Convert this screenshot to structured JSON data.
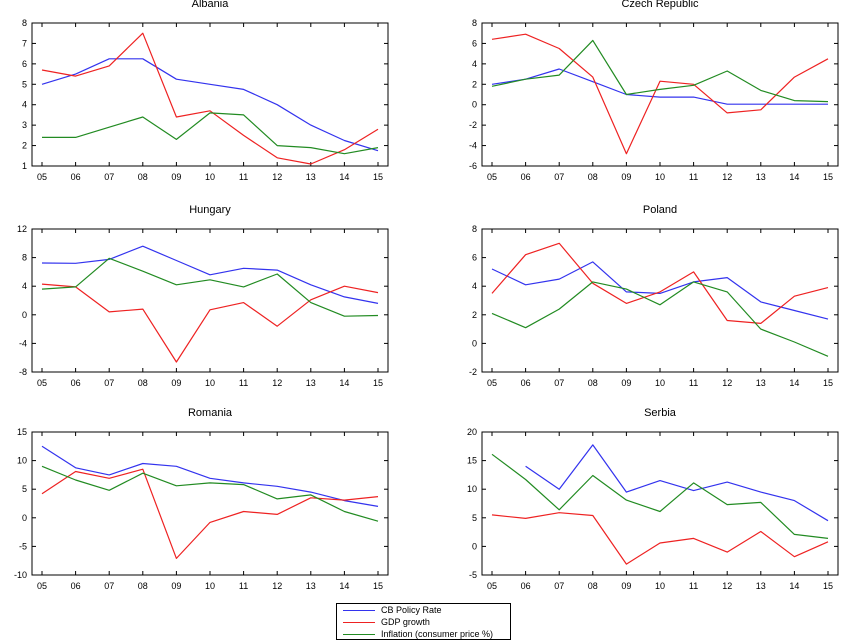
{
  "colors": {
    "cb_policy_rate": "#3333ee",
    "gdp_growth": "#ee2222",
    "inflation": "#228b22"
  },
  "legend": {
    "items": [
      {
        "label": "CB Policy Rate",
        "color": "#3333ee"
      },
      {
        "label": "GDP growth",
        "color": "#ee2222"
      },
      {
        "label": "Inflation (consumer price %)",
        "color": "#228b22"
      }
    ]
  },
  "chart_data": [
    {
      "type": "line",
      "title": "Albania",
      "categories": [
        "05",
        "06",
        "07",
        "08",
        "09",
        "10",
        "11",
        "12",
        "13",
        "14",
        "15"
      ],
      "ylim": [
        1,
        8
      ],
      "yticks": [
        1,
        2,
        3,
        4,
        5,
        6,
        7,
        8
      ],
      "grid": false,
      "series": [
        {
          "name": "CB Policy Rate",
          "values": [
            5.0,
            5.5,
            6.25,
            6.25,
            5.25,
            5.0,
            4.75,
            4.0,
            3.0,
            2.25,
            1.75
          ]
        },
        {
          "name": "GDP growth",
          "values": [
            5.7,
            5.4,
            5.9,
            7.5,
            3.4,
            3.7,
            2.5,
            1.4,
            1.1,
            1.8,
            2.8
          ]
        },
        {
          "name": "Inflation (consumer price %)",
          "values": [
            2.4,
            2.4,
            2.9,
            3.4,
            2.3,
            3.6,
            3.5,
            2.0,
            1.9,
            1.6,
            1.9
          ]
        }
      ]
    },
    {
      "type": "line",
      "title": "Czech Republic",
      "categories": [
        "05",
        "06",
        "07",
        "08",
        "09",
        "10",
        "11",
        "12",
        "13",
        "14",
        "15"
      ],
      "ylim": [
        -6,
        8
      ],
      "yticks": [
        -6,
        -4,
        -2,
        0,
        2,
        4,
        6,
        8
      ],
      "grid": false,
      "series": [
        {
          "name": "CB Policy Rate",
          "values": [
            2.0,
            2.5,
            3.5,
            2.25,
            1.0,
            0.75,
            0.75,
            0.05,
            0.05,
            0.05,
            0.05
          ]
        },
        {
          "name": "GDP growth",
          "values": [
            6.4,
            6.9,
            5.5,
            2.7,
            -4.8,
            2.3,
            2.0,
            -0.8,
            -0.5,
            2.7,
            4.5
          ]
        },
        {
          "name": "Inflation (consumer price %)",
          "values": [
            1.8,
            2.5,
            2.9,
            6.3,
            1.0,
            1.5,
            1.9,
            3.3,
            1.4,
            0.4,
            0.3
          ]
        }
      ]
    },
    {
      "type": "line",
      "title": "Hungary",
      "categories": [
        "05",
        "06",
        "07",
        "08",
        "09",
        "10",
        "11",
        "12",
        "13",
        "14",
        "15"
      ],
      "ylim": [
        -8,
        12
      ],
      "yticks": [
        -8,
        -4,
        0,
        4,
        8,
        12
      ],
      "grid": false,
      "series": [
        {
          "name": "CB Policy Rate",
          "values": [
            7.25,
            7.2,
            7.75,
            9.6,
            7.6,
            5.6,
            6.5,
            6.25,
            4.2,
            2.5,
            1.6
          ]
        },
        {
          "name": "GDP growth",
          "values": [
            4.3,
            3.9,
            0.4,
            0.8,
            -6.6,
            0.7,
            1.7,
            -1.6,
            2.1,
            4.0,
            3.1
          ]
        },
        {
          "name": "Inflation (consumer price %)",
          "values": [
            3.6,
            3.9,
            7.9,
            6.1,
            4.2,
            4.9,
            3.9,
            5.7,
            1.7,
            -0.2,
            -0.1
          ]
        }
      ]
    },
    {
      "type": "line",
      "title": "Poland",
      "categories": [
        "05",
        "06",
        "07",
        "08",
        "09",
        "10",
        "11",
        "12",
        "13",
        "14",
        "15"
      ],
      "ylim": [
        -2,
        8
      ],
      "yticks": [
        -2,
        0,
        2,
        4,
        6,
        8
      ],
      "grid": false,
      "series": [
        {
          "name": "CB Policy Rate",
          "values": [
            5.2,
            4.1,
            4.5,
            5.7,
            3.6,
            3.5,
            4.3,
            4.6,
            2.9,
            2.3,
            1.7
          ]
        },
        {
          "name": "GDP growth",
          "values": [
            3.5,
            6.2,
            7.0,
            4.2,
            2.8,
            3.6,
            5.0,
            1.6,
            1.4,
            3.3,
            3.9
          ]
        },
        {
          "name": "Inflation (consumer price %)",
          "values": [
            2.1,
            1.1,
            2.4,
            4.3,
            3.8,
            2.7,
            4.3,
            3.6,
            1.0,
            0.1,
            -0.9
          ]
        }
      ]
    },
    {
      "type": "line",
      "title": "Romania",
      "categories": [
        "05",
        "06",
        "07",
        "08",
        "09",
        "10",
        "11",
        "12",
        "13",
        "14",
        "15"
      ],
      "ylim": [
        -10,
        15
      ],
      "yticks": [
        -10,
        -5,
        0,
        5,
        10,
        15
      ],
      "grid": false,
      "series": [
        {
          "name": "CB Policy Rate",
          "values": [
            12.5,
            8.75,
            7.5,
            9.5,
            9.0,
            6.9,
            6.1,
            5.5,
            4.5,
            3.0,
            2.0
          ]
        },
        {
          "name": "GDP growth",
          "values": [
            4.2,
            8.1,
            6.9,
            8.5,
            -7.1,
            -0.8,
            1.1,
            0.6,
            3.5,
            3.1,
            3.7
          ]
        },
        {
          "name": "Inflation (consumer price %)",
          "values": [
            9.0,
            6.6,
            4.8,
            7.8,
            5.6,
            6.1,
            5.8,
            3.3,
            4.0,
            1.1,
            -0.6
          ]
        }
      ]
    },
    {
      "type": "line",
      "title": "Serbia",
      "categories": [
        "05",
        "06",
        "07",
        "08",
        "09",
        "10",
        "11",
        "12",
        "13",
        "14",
        "15"
      ],
      "ylim": [
        -5,
        20
      ],
      "yticks": [
        -5,
        0,
        5,
        10,
        15,
        20
      ],
      "grid": false,
      "series": [
        {
          "name": "CB Policy Rate",
          "values": [
            null,
            14.0,
            10.0,
            17.75,
            9.5,
            11.5,
            9.75,
            11.25,
            9.5,
            8.0,
            4.5
          ]
        },
        {
          "name": "GDP growth",
          "values": [
            5.5,
            4.9,
            5.9,
            5.4,
            -3.1,
            0.6,
            1.4,
            -1.0,
            2.6,
            -1.8,
            0.8
          ]
        },
        {
          "name": "Inflation (consumer price %)",
          "values": [
            16.1,
            11.7,
            6.4,
            12.4,
            8.1,
            6.1,
            11.1,
            7.3,
            7.7,
            2.1,
            1.4
          ]
        }
      ]
    }
  ]
}
